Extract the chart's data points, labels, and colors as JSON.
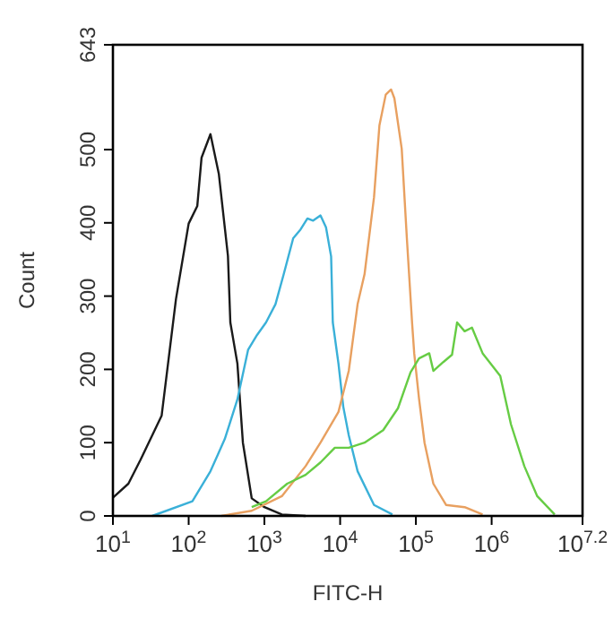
{
  "chart_data": {
    "type": "line",
    "xlabel": "FITC-H",
    "ylabel": "Count",
    "log": "x",
    "grid": false,
    "line_style": "solid",
    "marker": "none",
    "xlim": [
      10,
      15848932
    ],
    "ylim": [
      0,
      643
    ],
    "xticks": [
      {
        "value": 10,
        "label": "10$^{1}$"
      },
      {
        "value": 100,
        "label": "10$^{2}$"
      },
      {
        "value": 1000,
        "label": "10$^{3}$"
      },
      {
        "value": 10000,
        "label": "10$^{4}$"
      },
      {
        "value": 100000,
        "label": "10$^{5}$"
      },
      {
        "value": 1000000,
        "label": "10$^{6}$"
      },
      {
        "value": 15848932,
        "label": "10$^{7.2}$"
      }
    ],
    "yticks": [
      0,
      100,
      200,
      300,
      400,
      500,
      643
    ],
    "series": [
      {
        "color": "#1a1a1a",
        "x": [
          10,
          16,
          23,
          44,
          68,
          100,
          130,
          148,
          194,
          250,
          330,
          355,
          440,
          520,
          680,
          1000,
          1700,
          3500
        ],
        "values": [
          25,
          44,
          76,
          137,
          296,
          399,
          423,
          489,
          521,
          467,
          355,
          264,
          208,
          100,
          24,
          12,
          2,
          0
        ]
      },
      {
        "color": "#3ab0d8",
        "x": [
          33,
          112,
          194,
          300,
          440,
          610,
          800,
          1050,
          1400,
          1800,
          2400,
          3000,
          3700,
          4400,
          5500,
          6500,
          7600,
          8000,
          9500,
          11000,
          13000,
          17000,
          28000,
          49000
        ],
        "values": [
          0,
          20,
          61,
          105,
          159,
          227,
          247,
          264,
          289,
          330,
          379,
          391,
          406,
          403,
          410,
          394,
          354,
          264,
          208,
          149,
          110,
          61,
          15,
          2
        ]
      },
      {
        "color": "#e8a060",
        "x": [
          270,
          680,
          1700,
          3500,
          5500,
          9500,
          13000,
          17000,
          21000,
          28000,
          33000,
          40000,
          47000,
          52000,
          65000,
          76000,
          89000,
          95000,
          110000,
          130000,
          170000,
          250000,
          440000,
          760000
        ],
        "values": [
          0,
          7,
          27,
          68,
          100,
          142,
          198,
          289,
          330,
          435,
          533,
          575,
          582,
          570,
          501,
          379,
          264,
          222,
          160,
          100,
          44,
          15,
          12,
          2
        ]
      },
      {
        "color": "#66cc44",
        "x": [
          680,
          1050,
          2000,
          3500,
          5500,
          8500,
          13000,
          21000,
          37000,
          58000,
          85000,
          110000,
          150000,
          170000,
          230000,
          300000,
          350000,
          440000,
          550000,
          760000,
          1300000,
          1800000,
          2700000,
          4000000,
          6800000
        ],
        "values": [
          12,
          20,
          44,
          56,
          73,
          93,
          93,
          100,
          117,
          147,
          196,
          215,
          222,
          198,
          210,
          220,
          264,
          252,
          257,
          222,
          191,
          125,
          68,
          27,
          2
        ]
      }
    ]
  }
}
